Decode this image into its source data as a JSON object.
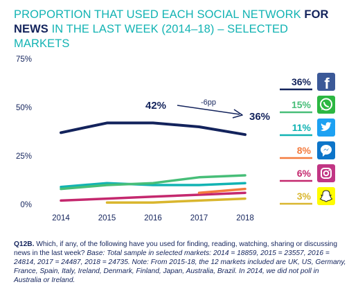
{
  "title": {
    "part1": "PROPORTION THAT USED EACH SOCIAL NETWORK ",
    "part2_bold": "FOR NEWS",
    "part3": " IN THE LAST WEEK (2014–18) – SELECTED MARKETS"
  },
  "chart_data": {
    "type": "line",
    "x": [
      "2014",
      "2015",
      "2016",
      "2017",
      "2018"
    ],
    "ylim": [
      0,
      75
    ],
    "yticks": [
      "0%",
      "25%",
      "50%",
      "75%"
    ],
    "grid": false,
    "series": [
      {
        "name": "Facebook",
        "color": "#13235C",
        "values": [
          37,
          42,
          42,
          40,
          36
        ],
        "end_label": "36%"
      },
      {
        "name": "WhatsApp",
        "color": "#47BE78",
        "values": [
          8,
          10,
          11,
          14,
          15
        ],
        "end_label": "15%"
      },
      {
        "name": "Twitter",
        "color": "#12B3B3",
        "values": [
          9,
          11,
          10,
          10,
          11
        ],
        "end_label": "11%"
      },
      {
        "name": "Messenger",
        "color": "#F47B3E",
        "values": [
          null,
          null,
          null,
          6,
          8
        ],
        "end_label": "8%"
      },
      {
        "name": "Instagram",
        "color": "#C4286E",
        "values": [
          2,
          3,
          4,
          5,
          6
        ],
        "end_label": "6%"
      },
      {
        "name": "Snapchat",
        "color": "#D9B62E",
        "values": [
          null,
          1,
          1,
          2,
          3
        ],
        "end_label": "3%"
      }
    ],
    "annotations": {
      "peak_label": "42%",
      "change_label": "-6pp",
      "end_label": "36%"
    }
  },
  "icons": [
    "facebook-icon",
    "whatsapp-icon",
    "twitter-icon",
    "messenger-icon",
    "instagram-icon",
    "snapchat-icon"
  ],
  "footnote": {
    "q_label": "Q12B.",
    "q_text": " Which, if any, of the following have you used for finding, reading, watching, sharing or discussing news in the last week? ",
    "base": "Base: Total sample in selected markets: 2014 = 18859, 2015 = 23557, 2016 = 24814, 2017 = 24487, 2018 = 24735. Note: From 2015-18, the 12 markets included are UK, US, Germany, France, Spain, Italy, Ireland, Denmark, Finland, Japan, Australia, Brazil. In 2014, we did not poll in Australia or Ireland."
  }
}
